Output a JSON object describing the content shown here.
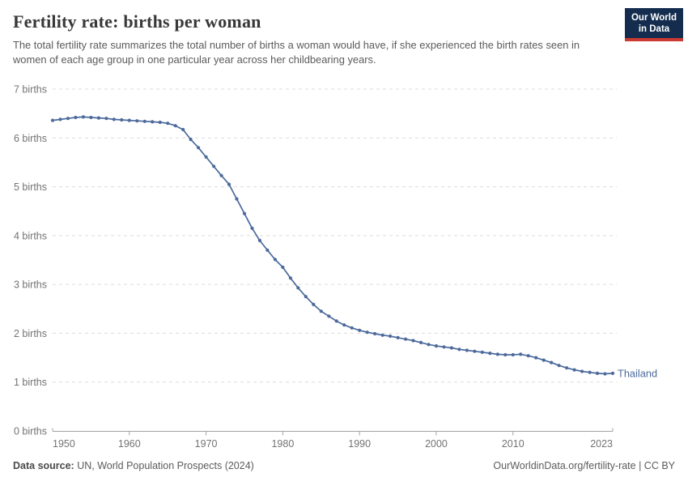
{
  "header": {
    "title": "Fertility rate: births per woman",
    "subtitle": "The total fertility rate summarizes the total number of births a woman would have, if she experienced the birth rates seen in women of each age group in one particular year across her childbearing years.",
    "logo": {
      "line1": "Our World",
      "line2": "in Data"
    }
  },
  "chart_data": {
    "type": "line",
    "title": "Fertility rate: births per woman",
    "entity": "Thailand",
    "xlabel": "",
    "ylabel": "",
    "y_axis_unit": "births",
    "y_tick_format": "{v} births",
    "ylim": [
      0,
      7
    ],
    "x_range": [
      1950,
      2023
    ],
    "x_ticks": [
      1950,
      1960,
      1970,
      1980,
      1990,
      2000,
      2010,
      2023
    ],
    "y_ticks": [
      0,
      1,
      2,
      3,
      4,
      5,
      6,
      7
    ],
    "grid": "dashed horizontal",
    "legend": "end-of-line label",
    "x": [
      1950,
      1951,
      1952,
      1953,
      1954,
      1955,
      1956,
      1957,
      1958,
      1959,
      1960,
      1961,
      1962,
      1963,
      1964,
      1965,
      1966,
      1967,
      1968,
      1969,
      1970,
      1971,
      1972,
      1973,
      1974,
      1975,
      1976,
      1977,
      1978,
      1979,
      1980,
      1981,
      1982,
      1983,
      1984,
      1985,
      1986,
      1987,
      1988,
      1989,
      1990,
      1991,
      1992,
      1993,
      1994,
      1995,
      1996,
      1997,
      1998,
      1999,
      2000,
      2001,
      2002,
      2003,
      2004,
      2005,
      2006,
      2007,
      2008,
      2009,
      2010,
      2011,
      2012,
      2013,
      2014,
      2015,
      2016,
      2017,
      2018,
      2019,
      2020,
      2021,
      2022,
      2023
    ],
    "series": [
      {
        "name": "Thailand",
        "color": "#4c6a9c",
        "values": [
          6.36,
          6.38,
          6.4,
          6.42,
          6.43,
          6.42,
          6.41,
          6.4,
          6.38,
          6.37,
          6.36,
          6.35,
          6.34,
          6.33,
          6.32,
          6.3,
          6.25,
          6.17,
          5.97,
          5.8,
          5.61,
          5.42,
          5.23,
          5.05,
          4.75,
          4.45,
          4.15,
          3.9,
          3.7,
          3.51,
          3.35,
          3.13,
          2.93,
          2.75,
          2.59,
          2.45,
          2.35,
          2.25,
          2.17,
          2.11,
          2.06,
          2.02,
          1.99,
          1.96,
          1.94,
          1.91,
          1.88,
          1.85,
          1.81,
          1.77,
          1.74,
          1.72,
          1.7,
          1.67,
          1.65,
          1.63,
          1.61,
          1.59,
          1.57,
          1.56,
          1.56,
          1.57,
          1.54,
          1.5,
          1.45,
          1.4,
          1.34,
          1.29,
          1.25,
          1.22,
          1.2,
          1.18,
          1.17,
          1.18
        ]
      }
    ]
  },
  "footer": {
    "datasource_label": "Data source:",
    "datasource": " UN, World Population Prospects (2024)",
    "link": "OurWorldinData.org/fertility-rate | CC BY"
  },
  "colors": {
    "line": "#4c6a9c",
    "entity_label": "#4c6a9c",
    "logo_navy": "#142d4f",
    "logo_red": "#cb3a32",
    "title_text": "#383838",
    "subtitle_text": "#5b5b5b",
    "axis_text": "#737373",
    "gridline": "#dcdcdc"
  }
}
